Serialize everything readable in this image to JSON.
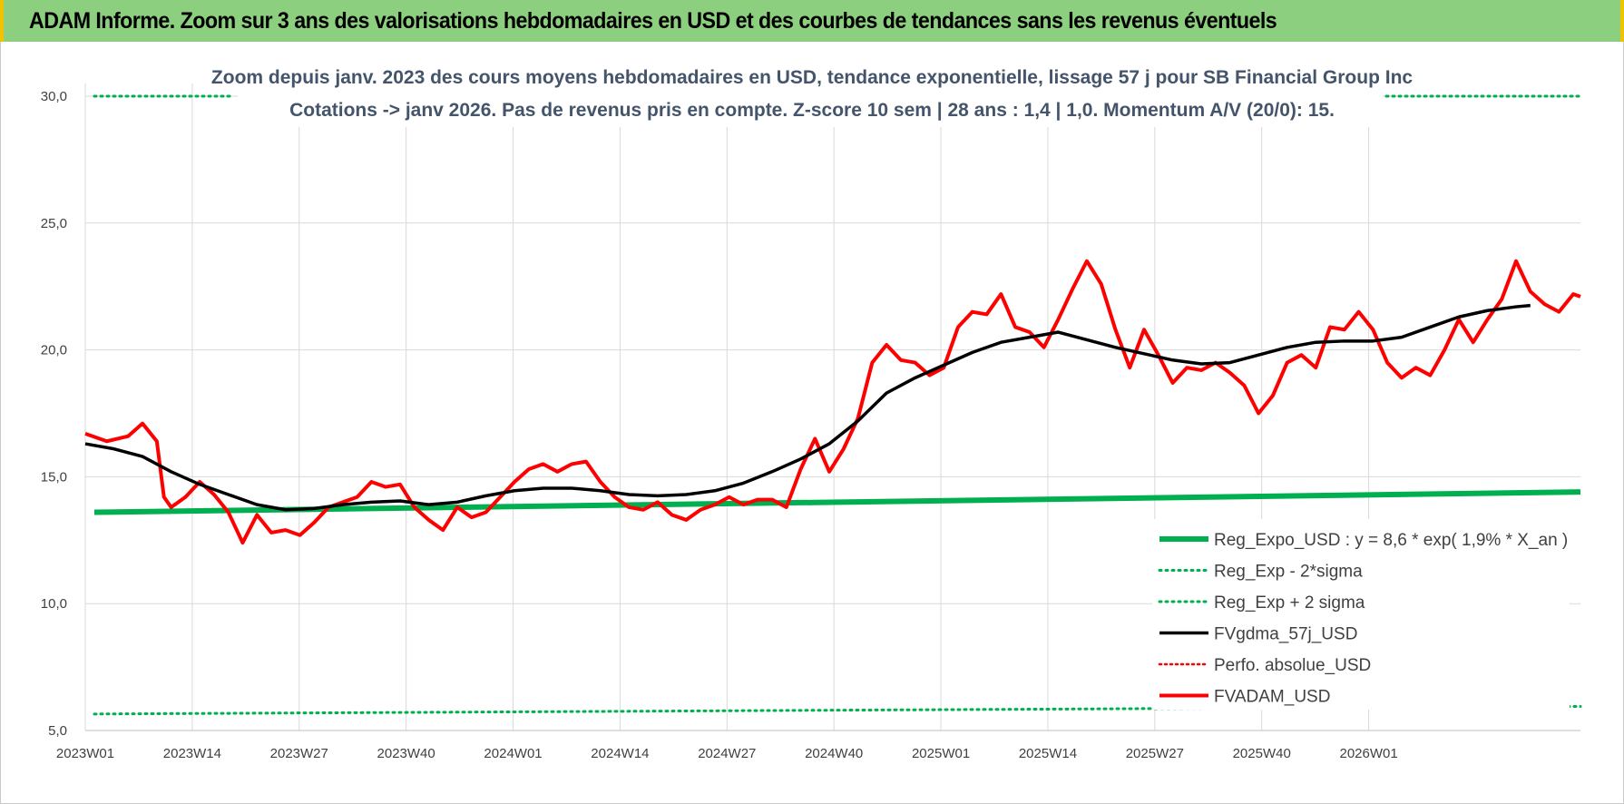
{
  "header": {
    "title": "ADAM Informe. Zoom sur 3 ans des valorisations hebdomadaires en USD et des courbes de tendances sans les revenus éventuels"
  },
  "chart_data": {
    "type": "line",
    "title_line1": "Zoom depuis janv. 2023 des cours moyens hebdomadaires en USD, tendance exponentielle, lissage 57 j pour SB Financial Group Inc",
    "title_line2": "Cotations -> janv 2026. Pas de revenus pris en compte. Z-score 10 sem | 28 ans : 1,4 | 1,0. Momentum A/V (20/0): 15.",
    "ylim": [
      5,
      30
    ],
    "yticks": [
      "5,0",
      "10,0",
      "15,0",
      "20,0",
      "25,0",
      "30,0"
    ],
    "ytick_values": [
      5,
      10,
      15,
      20,
      25,
      30
    ],
    "xticks": [
      "2023W01",
      "2023W14",
      "2023W27",
      "2023W40",
      "2024W01",
      "2024W14",
      "2024W27",
      "2024W40",
      "2025W01",
      "2025W14",
      "2025W27",
      "2025W40",
      "2026W01"
    ],
    "xtick_index": [
      0,
      13,
      26,
      39,
      52,
      65,
      78,
      91,
      104,
      117,
      130,
      143,
      156
    ],
    "x_count": 164,
    "legend_placement": "bottom-right",
    "series": [
      {
        "name": "Reg_Expo_USD : y = 8,6 * exp( 1,9% *  X_an )",
        "style": "solid-thick",
        "color": "#00b050",
        "start": 13.6,
        "end": 14.4
      },
      {
        "name": "Reg_Exp - 2*sigma",
        "style": "dotted",
        "color": "#00b050",
        "start": 5.65,
        "end": 5.95
      },
      {
        "name": "Reg_Exp + 2 sigma",
        "style": "dotted",
        "color": "#00b050",
        "start": 30.0,
        "end": 30.0
      },
      {
        "name": "FVgdma_57j_USD",
        "style": "solid",
        "color": "#000000",
        "points": [
          [
            0,
            16.3
          ],
          [
            4,
            16.1
          ],
          [
            8,
            15.8
          ],
          [
            12,
            15.2
          ],
          [
            16,
            14.7
          ],
          [
            20,
            14.3
          ],
          [
            24,
            13.9
          ],
          [
            28,
            13.7
          ],
          [
            32,
            13.75
          ],
          [
            36,
            13.9
          ],
          [
            40,
            14.0
          ],
          [
            44,
            14.05
          ],
          [
            48,
            13.9
          ],
          [
            52,
            14.0
          ],
          [
            56,
            14.25
          ],
          [
            60,
            14.45
          ],
          [
            64,
            14.55
          ],
          [
            68,
            14.55
          ],
          [
            72,
            14.45
          ],
          [
            76,
            14.3
          ],
          [
            80,
            14.25
          ],
          [
            84,
            14.3
          ],
          [
            88,
            14.45
          ],
          [
            92,
            14.75
          ],
          [
            96,
            15.2
          ],
          [
            100,
            15.7
          ],
          [
            104,
            16.3
          ],
          [
            108,
            17.2
          ],
          [
            112,
            18.3
          ],
          [
            116,
            18.9
          ],
          [
            120,
            19.4
          ],
          [
            124,
            19.9
          ],
          [
            128,
            20.3
          ],
          [
            132,
            20.5
          ],
          [
            136,
            20.7
          ],
          [
            140,
            20.4
          ],
          [
            144,
            20.1
          ],
          [
            148,
            19.85
          ],
          [
            152,
            19.6
          ],
          [
            156,
            19.45
          ],
          [
            160,
            19.5
          ],
          [
            164,
            19.8
          ],
          [
            168,
            20.1
          ],
          [
            172,
            20.3
          ],
          [
            176,
            20.35
          ],
          [
            180,
            20.35
          ],
          [
            184,
            20.5
          ],
          [
            188,
            20.9
          ],
          [
            192,
            21.3
          ],
          [
            196,
            21.55
          ],
          [
            200,
            21.7
          ],
          [
            202,
            21.75
          ]
        ]
      },
      {
        "name": "Perfo. absolue_USD",
        "style": "dotted",
        "color": "#ff0000"
      },
      {
        "name": "FVADAM_USD",
        "style": "solid-thick",
        "color": "#ff0000",
        "points": [
          [
            0,
            16.7
          ],
          [
            3,
            16.4
          ],
          [
            6,
            16.6
          ],
          [
            8,
            17.1
          ],
          [
            10,
            16.4
          ],
          [
            11,
            14.2
          ],
          [
            12,
            13.8
          ],
          [
            14,
            14.2
          ],
          [
            16,
            14.8
          ],
          [
            18,
            14.3
          ],
          [
            20,
            13.6
          ],
          [
            22,
            12.4
          ],
          [
            24,
            13.5
          ],
          [
            26,
            12.8
          ],
          [
            28,
            12.9
          ],
          [
            30,
            12.7
          ],
          [
            32,
            13.2
          ],
          [
            34,
            13.8
          ],
          [
            36,
            14.0
          ],
          [
            38,
            14.2
          ],
          [
            40,
            14.8
          ],
          [
            42,
            14.6
          ],
          [
            44,
            14.7
          ],
          [
            46,
            13.8
          ],
          [
            48,
            13.3
          ],
          [
            50,
            12.9
          ],
          [
            52,
            13.8
          ],
          [
            54,
            13.4
          ],
          [
            56,
            13.6
          ],
          [
            58,
            14.2
          ],
          [
            60,
            14.8
          ],
          [
            62,
            15.3
          ],
          [
            64,
            15.5
          ],
          [
            66,
            15.2
          ],
          [
            68,
            15.5
          ],
          [
            70,
            15.6
          ],
          [
            72,
            14.8
          ],
          [
            74,
            14.2
          ],
          [
            76,
            13.8
          ],
          [
            78,
            13.7
          ],
          [
            80,
            14.0
          ],
          [
            82,
            13.5
          ],
          [
            84,
            13.3
          ],
          [
            86,
            13.7
          ],
          [
            88,
            13.9
          ],
          [
            90,
            14.2
          ],
          [
            92,
            13.9
          ],
          [
            94,
            14.1
          ],
          [
            96,
            14.1
          ],
          [
            98,
            13.8
          ],
          [
            100,
            15.3
          ],
          [
            102,
            16.5
          ],
          [
            104,
            15.2
          ],
          [
            106,
            16.1
          ],
          [
            108,
            17.3
          ],
          [
            110,
            19.5
          ],
          [
            112,
            20.2
          ],
          [
            114,
            19.6
          ],
          [
            116,
            19.5
          ],
          [
            118,
            19.0
          ],
          [
            120,
            19.3
          ],
          [
            122,
            20.9
          ],
          [
            124,
            21.5
          ],
          [
            126,
            21.4
          ],
          [
            128,
            22.2
          ],
          [
            130,
            20.9
          ],
          [
            132,
            20.7
          ],
          [
            134,
            20.1
          ],
          [
            136,
            21.2
          ],
          [
            138,
            22.4
          ],
          [
            140,
            23.5
          ],
          [
            142,
            22.6
          ],
          [
            144,
            20.8
          ],
          [
            146,
            19.3
          ],
          [
            148,
            20.8
          ],
          [
            150,
            19.8
          ],
          [
            152,
            18.7
          ],
          [
            154,
            19.3
          ],
          [
            156,
            19.2
          ],
          [
            158,
            19.5
          ],
          [
            160,
            19.1
          ],
          [
            162,
            18.6
          ],
          [
            164,
            17.5
          ],
          [
            166,
            18.2
          ],
          [
            168,
            19.5
          ],
          [
            170,
            19.8
          ],
          [
            172,
            19.3
          ],
          [
            174,
            20.9
          ],
          [
            176,
            20.8
          ],
          [
            178,
            21.5
          ],
          [
            180,
            20.8
          ],
          [
            182,
            19.5
          ],
          [
            184,
            18.9
          ],
          [
            186,
            19.3
          ],
          [
            188,
            19.0
          ],
          [
            190,
            20.0
          ],
          [
            192,
            21.2
          ],
          [
            194,
            20.3
          ],
          [
            196,
            21.2
          ],
          [
            198,
            22.0
          ],
          [
            200,
            23.5
          ],
          [
            202,
            22.3
          ],
          [
            204,
            21.8
          ],
          [
            206,
            21.5
          ],
          [
            208,
            22.2
          ],
          [
            209,
            22.1
          ]
        ]
      }
    ]
  }
}
